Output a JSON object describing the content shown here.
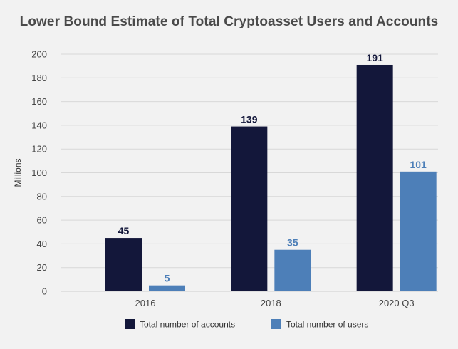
{
  "chart_data": {
    "type": "bar",
    "title": "Lower Bound Estimate of Total Cryptoasset Users and Accounts",
    "xlabel": "",
    "ylabel": "Millions",
    "categories": [
      "2016",
      "2018",
      "2020 Q3"
    ],
    "series": [
      {
        "name": "Total number of accounts",
        "values": [
          45,
          139,
          191
        ],
        "color": "#13173a"
      },
      {
        "name": "Total number of users",
        "values": [
          5,
          35,
          101
        ],
        "color": "#4d7fb8"
      }
    ],
    "ylim": [
      0,
      200
    ],
    "yticks": [
      0,
      20,
      40,
      60,
      80,
      100,
      120,
      140,
      160,
      180,
      200
    ],
    "grid": true,
    "legend_position": "bottom"
  }
}
